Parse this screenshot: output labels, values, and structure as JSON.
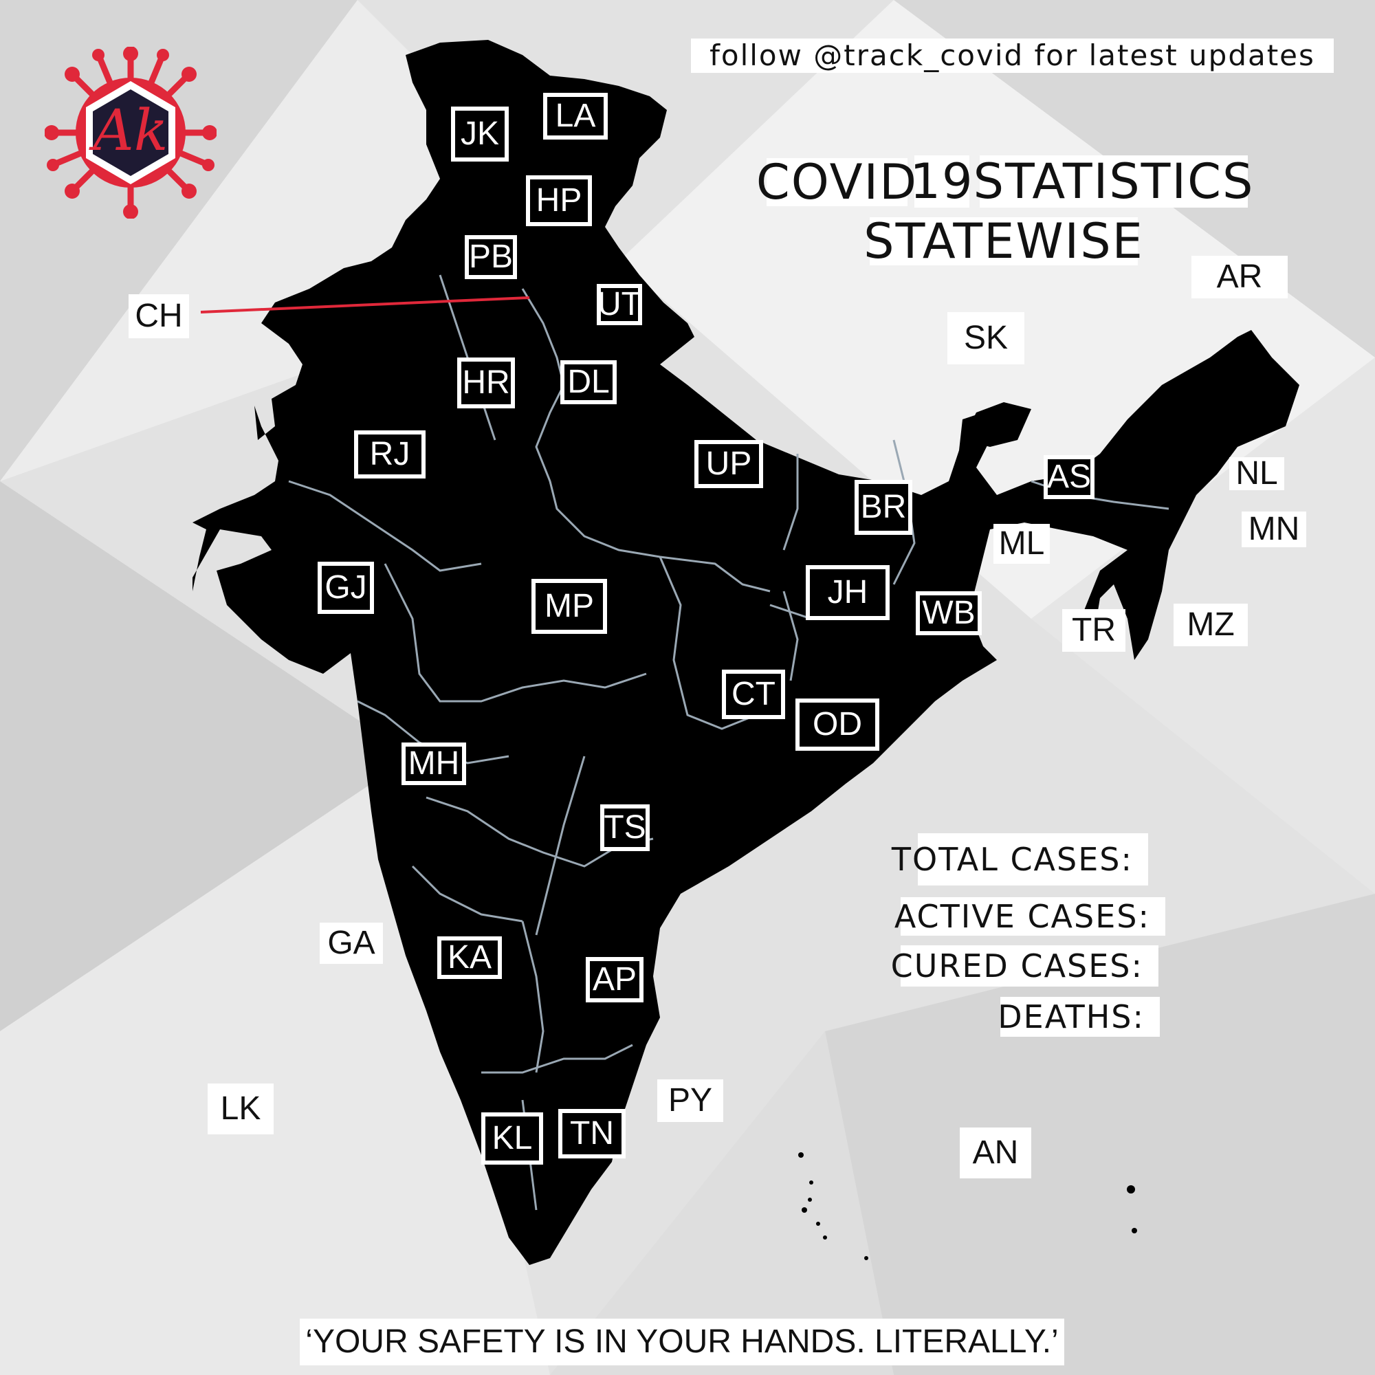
{
  "follow_text": "follow @track_covid for latest updates",
  "title": {
    "word1": "COVID",
    "word2": "19",
    "word3": "STATISTICS",
    "line2": "STATEWISE"
  },
  "stats": {
    "total": "TOTAL CASES:",
    "active": "ACTIVE CASES:",
    "cured": "CURED CASES:",
    "deaths": "DEATHS:"
  },
  "quote": "‘YOUR SAFETY IS IN YOUR HANDS. LITERALLY.’",
  "logo": {
    "text": "Ak",
    "ring_color": "#e0283a",
    "hex_color": "#1e1a33"
  },
  "colors": {
    "map": "#000000",
    "state_borders": "#9aa8b4",
    "leader_line": "#e0283a"
  },
  "states": {
    "JK": "JK",
    "LA": "LA",
    "HP": "HP",
    "PB": "PB",
    "UT": "UT",
    "HR": "HR",
    "DL": "DL",
    "RJ": "RJ",
    "UP": "UP",
    "BR": "BR",
    "AS": "AS",
    "GJ": "GJ",
    "MP": "MP",
    "JH": "JH",
    "WB": "WB",
    "CT": "CT",
    "OD": "OD",
    "MH": "MH",
    "TS": "TS",
    "KA": "KA",
    "AP": "AP",
    "KL": "KL",
    "TN": "TN"
  },
  "outside_labels": {
    "CH": "CH",
    "AR": "AR",
    "SK": "SK",
    "ML": "ML",
    "NL": "NL",
    "MN": "MN",
    "TR": "TR",
    "MZ": "MZ",
    "GA": "GA",
    "PY": "PY",
    "LK": "LK",
    "AN": "AN"
  }
}
